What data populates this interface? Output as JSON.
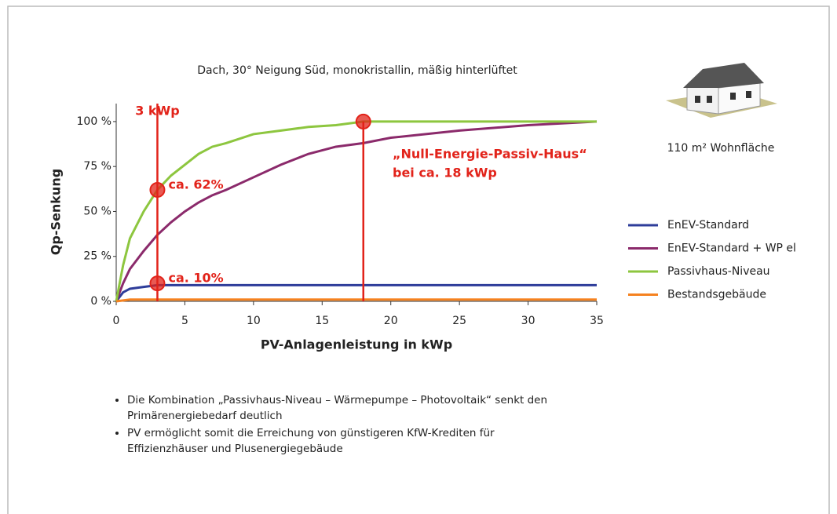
{
  "chart_data": {
    "type": "line",
    "title": "Dach, 30° Neigung Süd, monokristallin, mäßig hinterlüftet",
    "x_label": "PV-Anlagenleistung in kWp",
    "y_label": "Qp-Senkung",
    "x": [
      0,
      0.5,
      1,
      2,
      3,
      4,
      5,
      6,
      7,
      8,
      10,
      12,
      14,
      16,
      18,
      20,
      25,
      30,
      35
    ],
    "series": [
      {
        "name": "EnEV-Standard",
        "color": "#2e3d9a",
        "values": [
          0,
          5,
          7,
          8,
          9,
          9,
          9,
          9,
          9,
          9,
          9,
          9,
          9,
          9,
          9,
          9,
          9,
          9,
          9
        ]
      },
      {
        "name": "EnEV-Standard + WP el",
        "color": "#8b2a6b",
        "values": [
          0,
          10,
          18,
          28,
          37,
          44,
          50,
          55,
          59,
          62,
          69,
          76,
          82,
          86,
          88,
          91,
          95,
          98,
          100
        ]
      },
      {
        "name": "Passivhaus-Niveau",
        "color": "#8dc63f",
        "values": [
          0,
          20,
          35,
          50,
          62,
          70,
          76,
          82,
          86,
          88,
          93,
          95,
          97,
          98,
          100,
          100,
          100,
          100,
          100
        ]
      },
      {
        "name": "Bestandsgebäude",
        "color": "#f58220",
        "values": [
          0,
          0.5,
          1,
          1,
          1,
          1,
          1,
          1,
          1,
          1,
          1,
          1,
          1,
          1,
          1,
          1,
          1,
          1,
          1
        ]
      }
    ],
    "xlim": [
      0,
      35
    ],
    "ylim": [
      0,
      110
    ],
    "xticks": [
      0,
      5,
      10,
      15,
      20,
      25,
      30,
      35
    ],
    "yticks": [
      {
        "value": 0,
        "label": "0 %"
      },
      {
        "value": 25,
        "label": "25 %"
      },
      {
        "value": 50,
        "label": "50 %"
      },
      {
        "value": 75,
        "label": "75 %"
      },
      {
        "value": 100,
        "label": "100 %"
      }
    ],
    "highlight_color": "#e2231a",
    "vlines": [
      {
        "x": 3,
        "label": "3 kWp"
      },
      {
        "x": 18,
        "y": 100,
        "label": [
          "„Null-Energie-Passiv-Haus“",
          "bei ca. 18 kWp"
        ]
      }
    ],
    "points": [
      {
        "x": 3,
        "y": 62,
        "label": "ca. 62%"
      },
      {
        "x": 3,
        "y": 10,
        "label": "ca. 10%"
      }
    ],
    "house_caption": "110 m² Wohnfläche",
    "notes": [
      "Die Kombination „Passivhaus-Niveau – Wärmepumpe – Photovoltaik“ senkt den Primärenergiebedarf deutlich",
      "PV ermöglicht somit die Erreichung von günstigeren KfW-Krediten für Effizienzhäuser und Plusenergiegebäude"
    ]
  }
}
